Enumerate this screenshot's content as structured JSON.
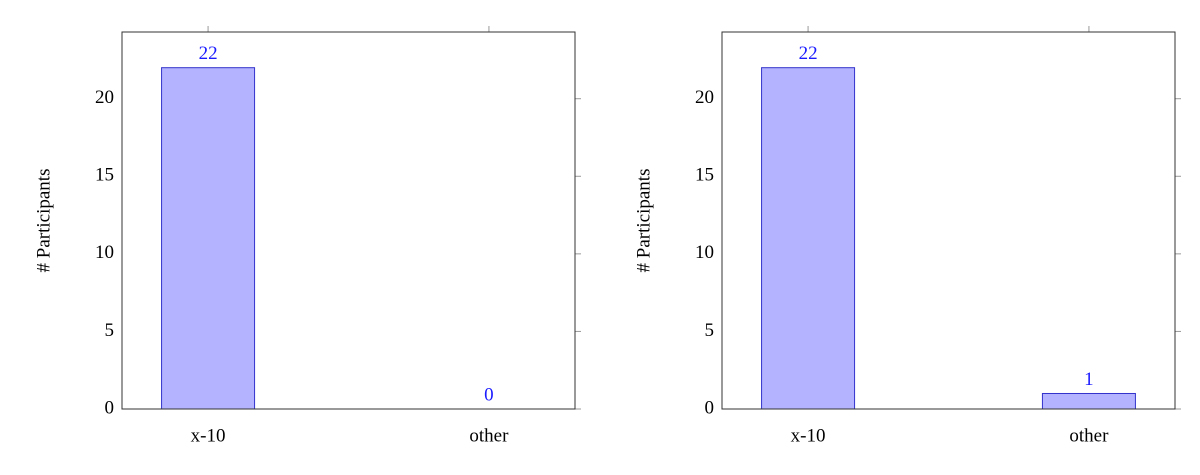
{
  "chart_data": [
    {
      "type": "bar",
      "y_label": "# Participants",
      "categories": [
        "x-10",
        "other"
      ],
      "values": [
        22,
        0
      ],
      "color": "#b3b3ff",
      "edge_color": "#3333cc",
      "label_color": "#1a1aff",
      "ylim": [
        0,
        24.3
      ],
      "yticks": [
        0,
        5,
        10,
        15,
        20
      ]
    },
    {
      "type": "bar",
      "y_label": "# Participants",
      "categories": [
        "x-10",
        "other"
      ],
      "values": [
        22,
        1
      ],
      "color": "#b3b3ff",
      "edge_color": "#3333cc",
      "label_color": "#1a1aff",
      "ylim": [
        0,
        24.3
      ],
      "yticks": [
        0,
        5,
        10,
        15,
        20
      ]
    }
  ]
}
